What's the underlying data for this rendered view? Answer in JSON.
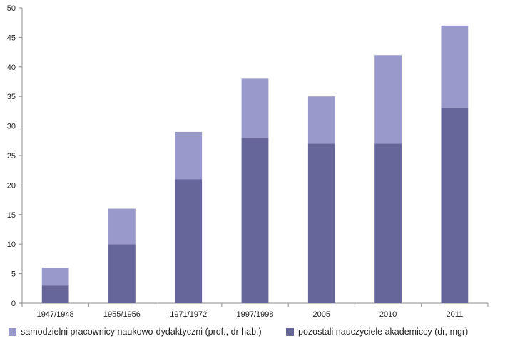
{
  "chart_data": {
    "type": "bar",
    "stacked": true,
    "categories": [
      "1947/1948",
      "1955/1956",
      "1971/1972",
      "1997/1998",
      "2005",
      "2010",
      "2011"
    ],
    "series": [
      {
        "name": "pozostali nauczyciele akademiccy (dr, mgr)",
        "values": [
          3,
          10,
          21,
          28,
          27,
          27,
          33
        ],
        "color": "#67669b"
      },
      {
        "name": "samodzielni pracownicy naukowo-dydaktyczni (prof., dr hab.)",
        "values": [
          3,
          6,
          8,
          10,
          8,
          15,
          14
        ],
        "color": "#9999cc"
      }
    ],
    "title": "",
    "xlabel": "",
    "ylabel": "",
    "ylim": [
      0,
      50
    ],
    "yticks": [
      0,
      5,
      10,
      15,
      20,
      25,
      30,
      35,
      40,
      45,
      50
    ],
    "grid": false,
    "legend_position": "bottom",
    "legend": [
      {
        "label": "samodzielni pracownicy naukowo-dydaktyczni (prof., dr hab.)",
        "color": "#9999cc"
      },
      {
        "label": "pozostali nauczyciele akademiccy (dr, mgr)",
        "color": "#67669b"
      }
    ]
  }
}
